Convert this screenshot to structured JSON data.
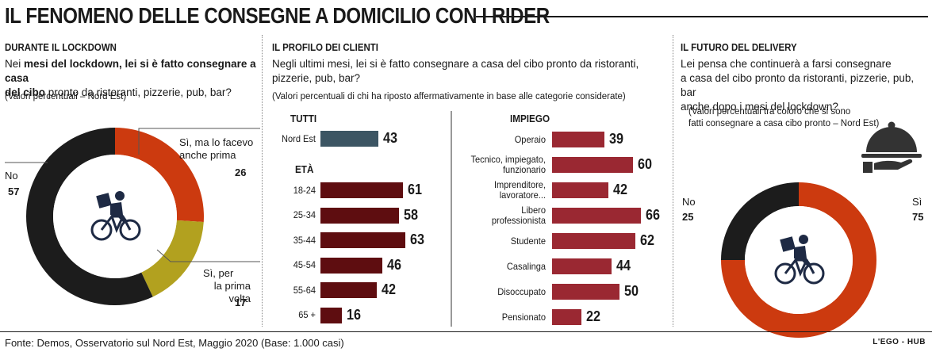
{
  "title": "IL FENOMENO DELLE CONSEGNE A DOMICILIO CON I RIDER",
  "section1": {
    "heading": "DURANTE IL LOCKDOWN",
    "question_line1_pre": "Nei ",
    "question_line1_bold": "mesi del lockdown, lei si è fatto consegnare a casa",
    "question_line2_bold": "del cibo",
    "question_line2_rest": " pronto da ristoranti, pizzerie, pub, bar?",
    "note": "(Valori percentuali – Nord Est)"
  },
  "section2": {
    "heading": "IL PROFILO DEI CLIENTI",
    "question_line1": "Negli ultimi mesi, lei si è fatto consegnare a casa del cibo pronto da ristoranti,",
    "question_line2": "pizzerie, pub, bar?",
    "note": "(Valori percentuali di chi ha riposto affermativamente in base alle categorie considerate)"
  },
  "section3": {
    "heading": "IL FUTURO DEL DELIVERY",
    "question_line1": "Lei pensa che continuerà a farsi consegnare",
    "question_line2": "a casa del cibo pronto da ristoranti,  pizzerie, pub, bar",
    "question_line3": "anche dopo i mesi del lockdown?",
    "note_line1": "(Valori percentuali tra coloro che si sono",
    "note_line2": "fatti consegnare a casa cibo pronto – Nord Est)"
  },
  "chart_data": [
    {
      "type": "pie",
      "title": "DURANTE IL LOCKDOWN",
      "slices": [
        {
          "label": "Sì, ma lo facevo anche prima",
          "label_line1": "Sì, ma lo facevo",
          "label_line2": "anche prima",
          "value": 26,
          "color": "#cc3a0f"
        },
        {
          "label": "Sì, per la prima volta",
          "label_line1": "Sì, per",
          "label_line2": "la prima volta",
          "value": 17,
          "color": "#b2a11f"
        },
        {
          "label": "No",
          "value": 57,
          "color": "#1c1c1c"
        }
      ]
    },
    {
      "type": "bar",
      "groups": [
        {
          "name": "TUTTI",
          "color": "#3c5563",
          "categories": [
            "Nord Est"
          ],
          "values": [
            43
          ]
        },
        {
          "name": "ETÀ",
          "color": "#5e0d10",
          "categories": [
            "18-24",
            "25-34",
            "35-44",
            "45-54",
            "55-64",
            "65 +"
          ],
          "values": [
            61,
            58,
            63,
            46,
            42,
            16
          ]
        }
      ]
    },
    {
      "type": "bar",
      "groups": [
        {
          "name": "IMPIEGO",
          "color": "#9a2832",
          "categories": [
            "Operaio",
            "Tecnico, impiegato, funzionario",
            "Imprenditore, lavoratore...",
            "Libero professionista",
            "Studente",
            "Casalinga",
            "Disoccupato",
            "Pensionato"
          ],
          "label_lines": [
            [
              "Operaio"
            ],
            [
              "Tecnico, impiegato,",
              "funzionario"
            ],
            [
              "Imprenditore,",
              "lavoratore..."
            ],
            [
              "Libero",
              "professionista"
            ],
            [
              "Studente"
            ],
            [
              "Casalinga"
            ],
            [
              "Disoccupato"
            ],
            [
              "Pensionato"
            ]
          ],
          "values": [
            39,
            60,
            42,
            66,
            62,
            44,
            50,
            22
          ]
        }
      ]
    },
    {
      "type": "pie",
      "title": "IL FUTURO DEL DELIVERY",
      "slices": [
        {
          "label": "Sì",
          "value": 75,
          "color": "#cc3a0f"
        },
        {
          "label": "No",
          "value": 25,
          "color": "#1c1c1c"
        }
      ]
    }
  ],
  "footer": "Fonte: Demos, Osservatorio sul Nord Est, Maggio 2020 (Base: 1.000 casi)",
  "brand": "L'EGO - HUB"
}
